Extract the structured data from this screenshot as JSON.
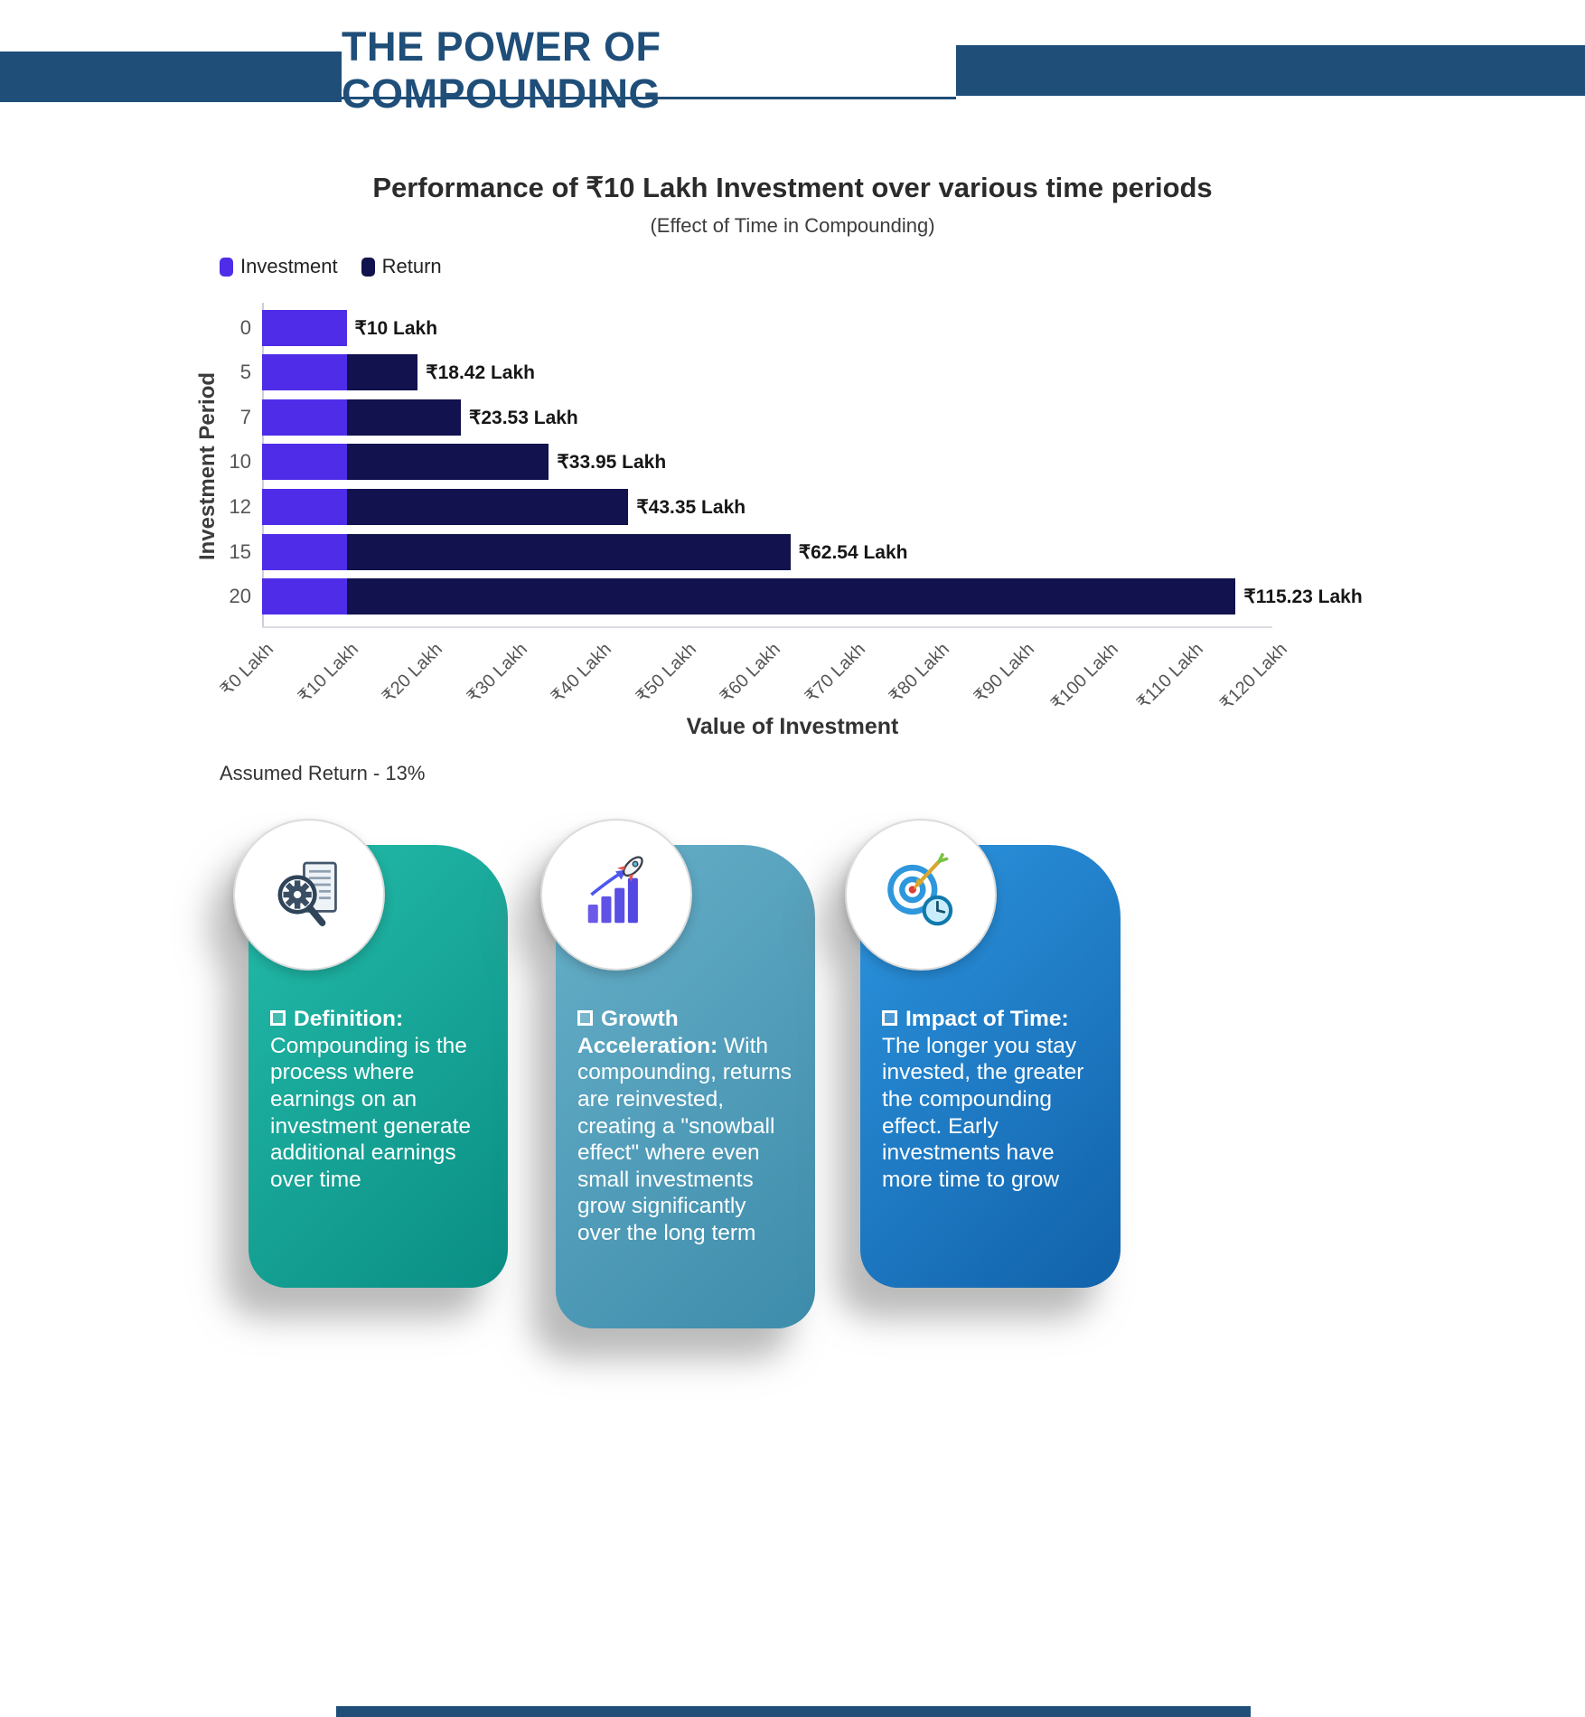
{
  "header": {
    "title": "THE POWER OF COMPOUNDING"
  },
  "chart_data": {
    "type": "bar",
    "orientation": "horizontal",
    "title": "Performance of ₹10 Lakh Investment over various time periods",
    "subtitle": "(Effect of Time in Compounding)",
    "ylabel": "Investment Period",
    "xlabel": "Value of Investment",
    "legend": [
      {
        "label": "Investment",
        "color": "#4f2de8"
      },
      {
        "label": "Return",
        "color": "#12124e"
      }
    ],
    "categories": [
      "0",
      "5",
      "7",
      "10",
      "12",
      "15",
      "20"
    ],
    "series": [
      {
        "name": "Investment",
        "values": [
          10,
          10,
          10,
          10,
          10,
          10,
          10
        ]
      },
      {
        "name": "Return",
        "values": [
          0,
          8.42,
          13.53,
          23.95,
          33.35,
          52.54,
          105.23
        ]
      }
    ],
    "totals": [
      10,
      18.42,
      23.53,
      33.95,
      43.35,
      62.54,
      115.23
    ],
    "bar_labels": [
      "₹10 Lakh",
      "₹18.42 Lakh",
      "₹23.53 Lakh",
      "₹33.95 Lakh",
      "₹43.35 Lakh",
      "₹62.54 Lakh",
      "₹115.23 Lakh"
    ],
    "x_ticks": [
      "₹0 Lakh",
      "₹10 Lakh",
      "₹20 Lakh",
      "₹30 Lakh",
      "₹40 Lakh",
      "₹50 Lakh",
      "₹60 Lakh",
      "₹70 Lakh",
      "₹80 Lakh",
      "₹90 Lakh",
      "₹100 Lakh",
      "₹110 Lakh",
      "₹120 Lakh"
    ],
    "xlim": [
      0,
      120
    ],
    "grid": false,
    "legend_position": "top-left"
  },
  "note": "Assumed Return - 13%",
  "cards": [
    {
      "icon": "magnifier-gear-document-icon",
      "heading": "Definition:",
      "body": "Compounding is the process where earnings on an investment generate additional earnings over time",
      "gradient_from": "#24bcaa",
      "gradient_to": "#0a8e84"
    },
    {
      "icon": "rocket-growth-chart-icon",
      "heading": "Growth Acceleration:",
      "body": "With compounding, returns are reinvested, creating a \"snowball effect\" where even small investments grow significantly over the long term",
      "gradient_from": "#68b0c9",
      "gradient_to": "#3d8cab"
    },
    {
      "icon": "target-clock-icon",
      "heading": "Impact of Time:",
      "body": "The longer you stay invested, the greater the compounding effect. Early investments have more time to grow",
      "gradient_from": "#2d95df",
      "gradient_to": "#1162aa"
    }
  ]
}
